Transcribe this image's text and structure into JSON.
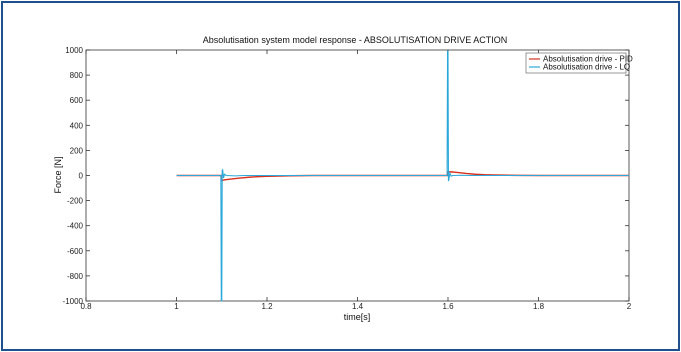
{
  "chart_data": {
    "type": "line",
    "title": "Absolutisation system model response - ABSOLUTISATION DRIVE ACTION",
    "xlabel": "time[s]",
    "ylabel": "Force [N]",
    "xlim": [
      0.8,
      2.0
    ],
    "ylim": [
      -1000,
      1000
    ],
    "x_ticks": [
      "0.8",
      "1",
      "1.2",
      "1.4",
      "1.6",
      "1.8",
      "2"
    ],
    "y_ticks": [
      "1000",
      "800",
      "600",
      "400",
      "200",
      "0",
      "-200",
      "-400",
      "-600",
      "-800",
      "-1000"
    ],
    "grid": false,
    "legend_position": "top-right",
    "colors": {
      "pid": "#d6301f",
      "lq": "#2ba8d9"
    },
    "series": [
      {
        "name": "Absolutisation drive - PID",
        "x": [
          1.0,
          1.099,
          1.1,
          1.105,
          1.12,
          1.14,
          1.16,
          1.18,
          1.2,
          1.25,
          1.3,
          1.599,
          1.6,
          1.61,
          1.62,
          1.64,
          1.66,
          1.68,
          1.7,
          1.75,
          1.8,
          2.0
        ],
        "y": [
          0,
          0,
          -40,
          -35,
          -28,
          -20,
          -14,
          -9,
          -6,
          -2,
          0,
          0,
          30,
          28,
          24,
          16,
          10,
          6,
          4,
          1,
          0,
          0
        ]
      },
      {
        "name": "Absolutisation drive - LQ",
        "x": [
          1.0,
          1.098,
          1.099,
          1.1,
          1.101,
          1.102,
          1.104,
          1.106,
          1.11,
          1.13,
          1.15,
          1.598,
          1.599,
          1.6,
          1.601,
          1.602,
          1.604,
          1.607,
          1.61,
          1.63,
          1.65,
          2.0
        ],
        "y": [
          0,
          0,
          -1000,
          -1000,
          40,
          45,
          -20,
          10,
          0,
          -3,
          0,
          0,
          990,
          990,
          -45,
          -30,
          20,
          -5,
          0,
          2,
          0,
          0
        ]
      }
    ]
  }
}
